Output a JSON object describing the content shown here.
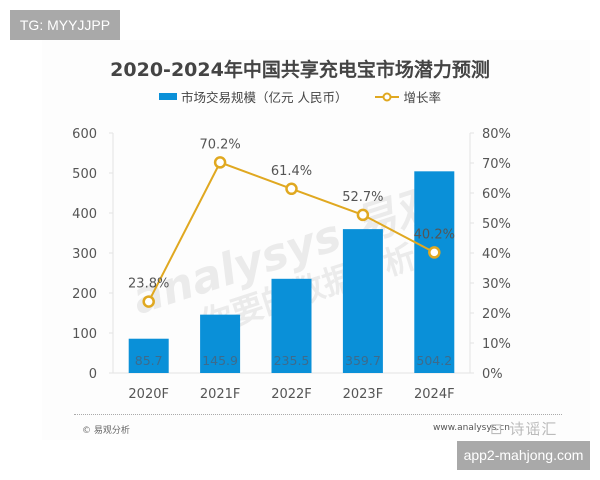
{
  "overlay": {
    "top_tag": "TG: MYYJJPP",
    "bottom_tag": "app2-mahjong.com",
    "badge": "⊡ 诗谣汇"
  },
  "watermark": {
    "latin": "analysys 易观",
    "chinese": "你要的数据分析力"
  },
  "footer": {
    "source": "© 易观分析",
    "url": "www.analysys.cn"
  },
  "colors": {
    "bar": "#0a90d8",
    "line": "#e0a820",
    "marker_fill": "#ffffff",
    "grid_axis": "#e3e3e3"
  },
  "chart_data": {
    "type": "bar+line",
    "title": "2020-2024年中国共享充电宝市场潜力预测",
    "categories": [
      "2020F",
      "2021F",
      "2022F",
      "2023F",
      "2024F"
    ],
    "series": [
      {
        "name": "市场交易规模（亿元 人民币）",
        "type": "bar",
        "axis": "left",
        "values": [
          85.7,
          145.9,
          235.5,
          359.7,
          504.2
        ],
        "labels": [
          "85.7",
          "145.9",
          "235.5",
          "359.7",
          "504.2"
        ]
      },
      {
        "name": "增长率",
        "type": "line",
        "axis": "right",
        "values": [
          23.8,
          70.2,
          61.4,
          52.7,
          40.2
        ],
        "labels": [
          "23.8%",
          "70.2%",
          "61.4%",
          "52.7%",
          "40.2%"
        ]
      }
    ],
    "left_axis": {
      "ylim": [
        0,
        600
      ],
      "ticks": [
        "0",
        "100",
        "200",
        "300",
        "400",
        "500",
        "600"
      ]
    },
    "right_axis": {
      "ylim": [
        0,
        80
      ],
      "ticks": [
        "0%",
        "10%",
        "20%",
        "30%",
        "40%",
        "50%",
        "60%",
        "70%",
        "80%"
      ]
    },
    "xlabel": "",
    "ylabel": "",
    "grid": false,
    "legend_position": "top"
  }
}
